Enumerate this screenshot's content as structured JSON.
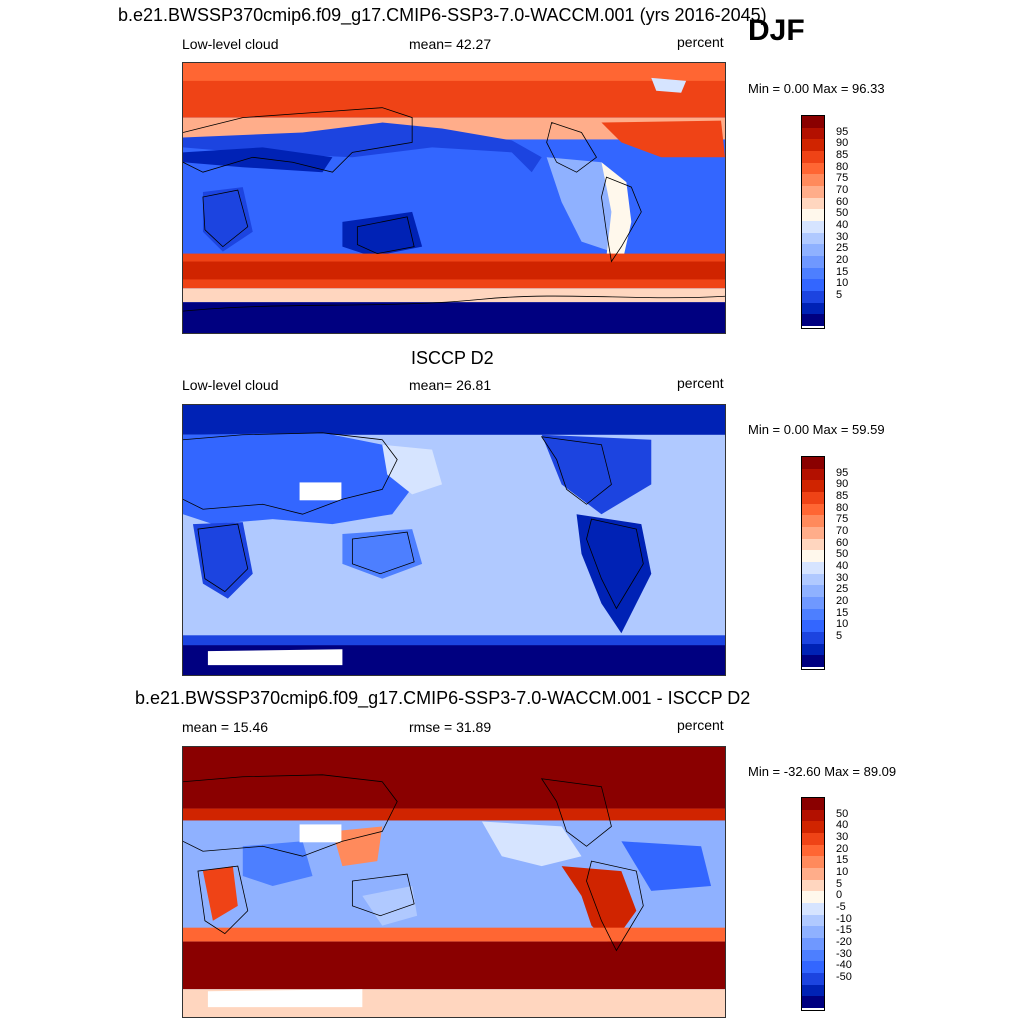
{
  "season": "DJF",
  "colors": {
    "abs_scale": [
      "#000080",
      "#0022b5",
      "#1c44e0",
      "#3366ff",
      "#4d7fff",
      "#6f98ff",
      "#8fb1ff",
      "#b0c9ff",
      "#d6e4ff",
      "#fff8ec",
      "#ffd6bf",
      "#ffad8a",
      "#ff8a5c",
      "#ff6633",
      "#ef4316",
      "#d02400",
      "#b31000",
      "#8a0000"
    ],
    "diff_scale": [
      "#000080",
      "#0022b5",
      "#1c44e0",
      "#3366ff",
      "#4d7fff",
      "#6f98ff",
      "#8fb1ff",
      "#b0c9ff",
      "#d6e4ff",
      "#fff8ec",
      "#ffd6bf",
      "#ffad8a",
      "#ff8a5c",
      "#ff6633",
      "#ef4316",
      "#d02400",
      "#b31000",
      "#8a0000"
    ]
  },
  "panels": [
    {
      "title": "b.e21.BWSSP370cmip6.f09_g17.CMIP6-SSP3-7.0-WACCM.001 (yrs 2016-2045)",
      "left_label": "Low-level cloud",
      "mid_label": "mean=  42.27",
      "units": "percent",
      "minmax": "Min =   0.00 Max =  96.33",
      "ticks": [
        "95",
        "90",
        "85",
        "80",
        "75",
        "70",
        "60",
        "50",
        "40",
        "30",
        "25",
        "20",
        "15",
        "10",
        "5"
      ]
    },
    {
      "title": "ISCCP D2",
      "left_label": "Low-level cloud",
      "mid_label": "mean=  26.81",
      "units": "percent",
      "minmax": "Min =   0.00 Max =  59.59",
      "ticks": [
        "95",
        "90",
        "85",
        "80",
        "75",
        "70",
        "60",
        "50",
        "40",
        "30",
        "25",
        "20",
        "15",
        "10",
        "5"
      ]
    },
    {
      "title": "b.e21.BWSSP370cmip6.f09_g17.CMIP6-SSP3-7.0-WACCM.001 - ISCCP D2",
      "left_label": "mean =  15.46",
      "mid_label": "rmse =  31.89",
      "units": "percent",
      "minmax": "Min = -32.60 Max =  89.09",
      "ticks": [
        "50",
        "40",
        "30",
        "20",
        "15",
        "10",
        "5",
        "0",
        "-5",
        "-10",
        "-15",
        "-20",
        "-30",
        "-40",
        "-50"
      ]
    }
  ]
}
